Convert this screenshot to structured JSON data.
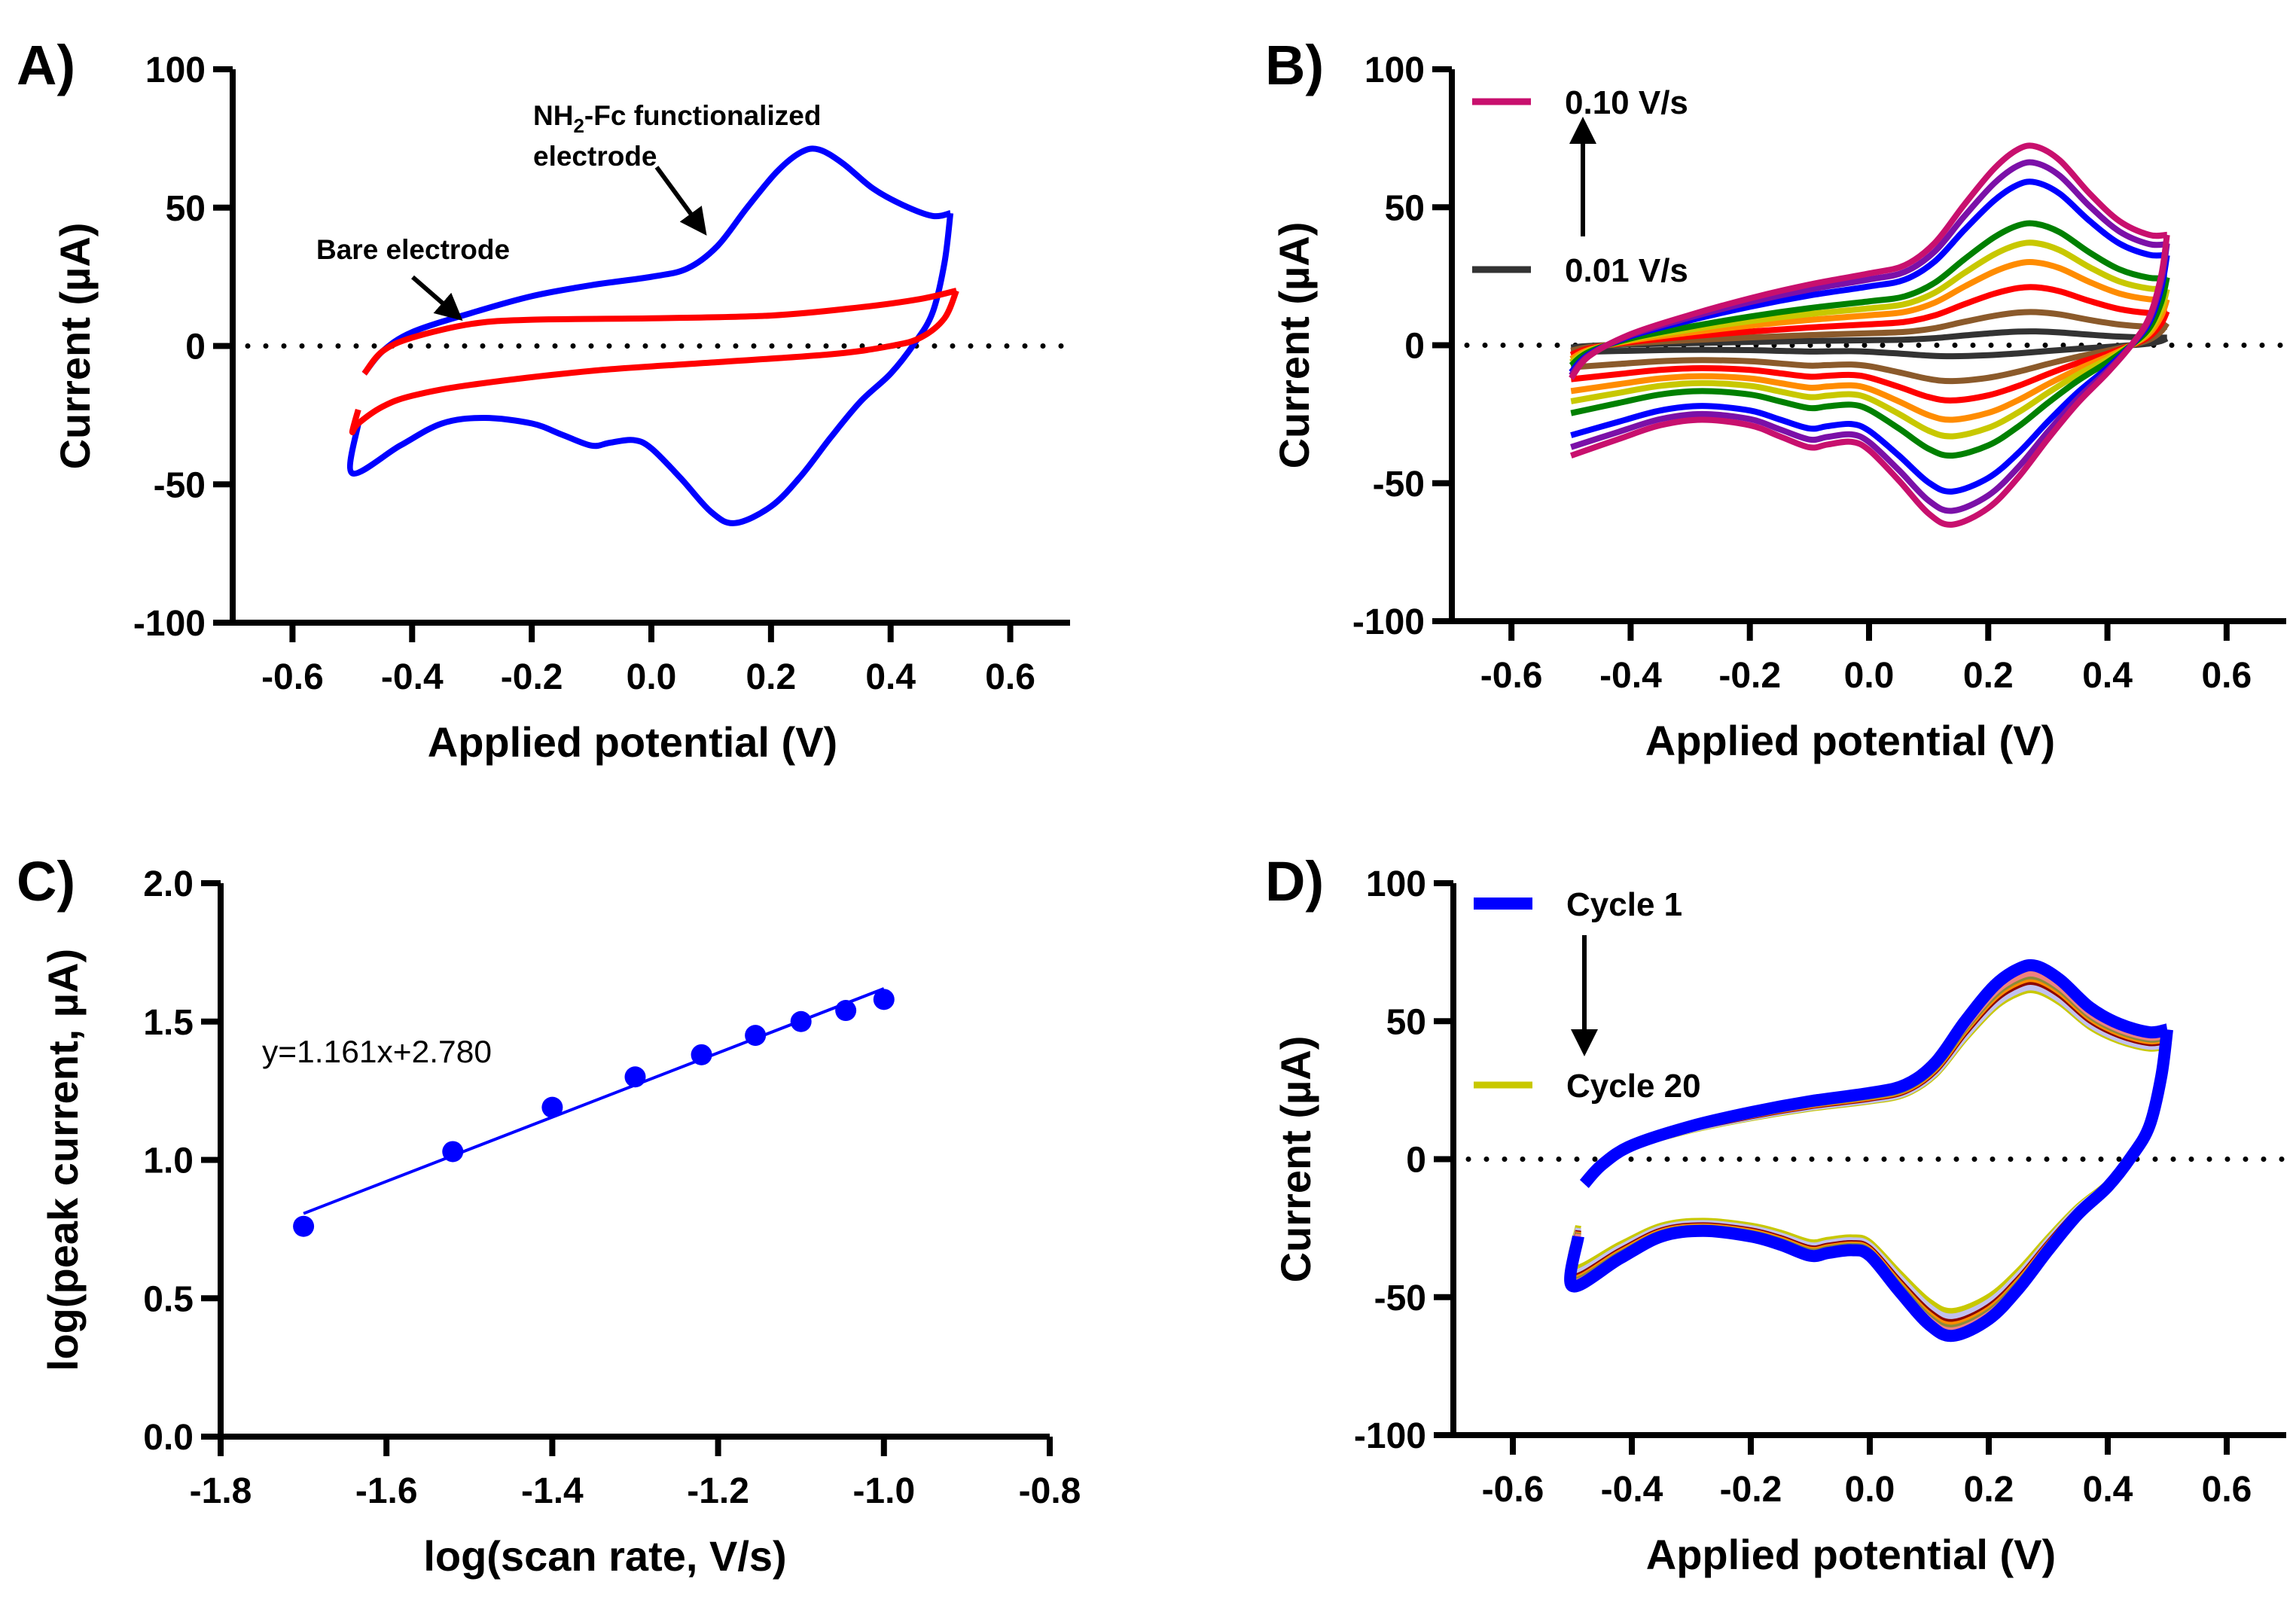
{
  "chart_data": [
    {
      "panel": "A)",
      "type": "line",
      "xlabel": "Applied potential (V)",
      "ylabel": "Current (µA)",
      "xlim": [
        -0.7,
        0.7
      ],
      "ylim": [
        -100,
        100
      ],
      "xticks": [
        "-0.6",
        "-0.4",
        "-0.2",
        "0.0",
        "0.2",
        "0.4",
        "0.6"
      ],
      "yticks": [
        "-100",
        "-50",
        "0",
        "50",
        "100"
      ],
      "zero_line": "dotted",
      "grid": false,
      "series": [
        {
          "color": "#0000FF",
          "points_forward": [
            [
              -0.48,
              -10
            ],
            [
              -0.45,
              -2
            ],
            [
              -0.4,
              5
            ],
            [
              -0.3,
              12
            ],
            [
              -0.2,
              18
            ],
            [
              -0.1,
              22
            ],
            [
              0.0,
              25
            ],
            [
              0.06,
              28
            ],
            [
              0.11,
              36
            ],
            [
              0.16,
              50
            ],
            [
              0.21,
              63
            ],
            [
              0.25,
              70
            ],
            [
              0.28,
              71
            ],
            [
              0.32,
              66
            ],
            [
              0.37,
              57
            ],
            [
              0.42,
              51
            ],
            [
              0.47,
              47
            ],
            [
              0.5,
              48
            ]
          ],
          "points_reverse": [
            [
              0.5,
              48
            ],
            [
              0.49,
              30
            ],
            [
              0.47,
              12
            ],
            [
              0.44,
              1
            ],
            [
              0.4,
              -10
            ],
            [
              0.35,
              -20
            ],
            [
              0.3,
              -33
            ],
            [
              0.25,
              -47
            ],
            [
              0.2,
              -58
            ],
            [
              0.14,
              -64
            ],
            [
              0.1,
              -60
            ],
            [
              0.05,
              -48
            ],
            [
              0.0,
              -37
            ],
            [
              -0.03,
              -34
            ],
            [
              -0.07,
              -35
            ],
            [
              -0.1,
              -36
            ],
            [
              -0.15,
              -32
            ],
            [
              -0.2,
              -28
            ],
            [
              -0.28,
              -26
            ],
            [
              -0.35,
              -28
            ],
            [
              -0.42,
              -36
            ],
            [
              -0.5,
              -46
            ],
            [
              -0.49,
              -28
            ]
          ]
        },
        {
          "color": "#FF0000",
          "points_forward": [
            [
              -0.48,
              -10
            ],
            [
              -0.45,
              -2
            ],
            [
              -0.4,
              3
            ],
            [
              -0.3,
              8
            ],
            [
              -0.2,
              9.5
            ],
            [
              0.0,
              10
            ],
            [
              0.2,
              11
            ],
            [
              0.35,
              14
            ],
            [
              0.45,
              17
            ],
            [
              0.51,
              20
            ]
          ],
          "points_reverse": [
            [
              0.51,
              20
            ],
            [
              0.49,
              10
            ],
            [
              0.45,
              3
            ],
            [
              0.4,
              0
            ],
            [
              0.3,
              -3
            ],
            [
              0.1,
              -6
            ],
            [
              -0.1,
              -9
            ],
            [
              -0.3,
              -14
            ],
            [
              -0.4,
              -18
            ],
            [
              -0.45,
              -22
            ],
            [
              -0.49,
              -28
            ],
            [
              -0.5,
              -31
            ],
            [
              -0.49,
              -23
            ]
          ]
        }
      ],
      "annotations": [
        {
          "line1_main": "NH",
          "line1_sub": "2",
          "line1_rest": "-Fc functionalized",
          "line2": "electrode",
          "points_to": "blue curve"
        },
        {
          "line1_main": "Bare electrode",
          "points_to": "red curve"
        }
      ]
    },
    {
      "panel": "B)",
      "type": "line",
      "xlabel": "Applied potential (V)",
      "ylabel": "Current (µA)",
      "xlim": [
        -0.7,
        0.7
      ],
      "ylim": [
        -100,
        100
      ],
      "xticks": [
        "-0.6",
        "-0.4",
        "-0.2",
        "0.0",
        "0.2",
        "0.4",
        "0.6"
      ],
      "yticks": [
        "-100",
        "-50",
        "0",
        "50",
        "100"
      ],
      "zero_line": "dotted",
      "grid": false,
      "legend": {
        "top": "0.10 V/s",
        "bottom": "0.01 V/s",
        "arrow": "up",
        "placement": "top-left"
      },
      "series": [
        {
          "name": "0.10 V/s",
          "color": "#C8106E",
          "anodic_peak": 72,
          "cathodic_peak": -65,
          "points_forward": [
            [
              -0.5,
              -12
            ],
            [
              -0.47,
              -4
            ],
            [
              -0.4,
              4
            ],
            [
              -0.3,
              11
            ],
            [
              -0.2,
              17
            ],
            [
              -0.1,
              22
            ],
            [
              0.0,
              26
            ],
            [
              0.06,
              29
            ],
            [
              0.11,
              37
            ],
            [
              0.16,
              51
            ],
            [
              0.21,
              64
            ],
            [
              0.25,
              71
            ],
            [
              0.28,
              72
            ],
            [
              0.32,
              67
            ],
            [
              0.37,
              55
            ],
            [
              0.42,
              45
            ],
            [
              0.47,
              40
            ],
            [
              0.5,
              40
            ]
          ],
          "points_reverse": [
            [
              0.5,
              40
            ],
            [
              0.49,
              25
            ],
            [
              0.47,
              10
            ],
            [
              0.44,
              0
            ],
            [
              0.4,
              -10
            ],
            [
              0.35,
              -21
            ],
            [
              0.3,
              -34
            ],
            [
              0.25,
              -48
            ],
            [
              0.2,
              -59
            ],
            [
              0.14,
              -65
            ],
            [
              0.1,
              -61
            ],
            [
              0.05,
              -49
            ],
            [
              0.0,
              -38
            ],
            [
              -0.03,
              -35
            ],
            [
              -0.07,
              -36
            ],
            [
              -0.1,
              -37
            ],
            [
              -0.15,
              -33
            ],
            [
              -0.2,
              -29
            ],
            [
              -0.28,
              -27
            ],
            [
              -0.35,
              -29
            ],
            [
              -0.42,
              -34
            ],
            [
              -0.5,
              -40
            ]
          ]
        },
        {
          "color": "#7B10A8",
          "anodic_peak": 66,
          "cathodic_peak": -60
        },
        {
          "color": "#0000FF",
          "anodic_peak": 59,
          "cathodic_peak": -53
        },
        {
          "color": "#008000",
          "anodic_peak": 44,
          "cathodic_peak": -40
        },
        {
          "color": "#C8C800",
          "anodic_peak": 37,
          "cathodic_peak": -33
        },
        {
          "color": "#FF8C00",
          "anodic_peak": 30,
          "cathodic_peak": -27
        },
        {
          "color": "#FF0000",
          "anodic_peak": 21,
          "cathodic_peak": -20
        },
        {
          "color": "#8B5A2B",
          "anodic_peak": 12,
          "cathodic_peak": -13
        },
        {
          "name": "0.01 V/s",
          "color": "#333333",
          "anodic_peak": 5,
          "cathodic_peak": -4
        }
      ]
    },
    {
      "panel": "C)",
      "type": "scatter",
      "xlabel": "log(scan rate, V/s)",
      "ylabel": "log(peak current, µA)",
      "xlim": [
        -1.8,
        -0.8
      ],
      "ylim": [
        0.0,
        2.0
      ],
      "xticks": [
        "-1.8",
        "-1.6",
        "-1.4",
        "-1.2",
        "-1.0",
        "-0.8"
      ],
      "yticks": [
        "0.0",
        "0.5",
        "1.0",
        "1.5",
        "2.0"
      ],
      "grid": false,
      "color": "#0000FF",
      "x": [
        -1.7,
        -1.52,
        -1.4,
        -1.3,
        -1.22,
        -1.155,
        -1.1,
        -1.046,
        -1.0
      ],
      "y": [
        0.76,
        1.03,
        1.19,
        1.3,
        1.38,
        1.45,
        1.5,
        1.54,
        1.58
      ],
      "fit": {
        "equation": "y=1.161x+2.780",
        "slope": 1.161,
        "intercept": 2.78,
        "x_range": [
          -1.7,
          -1.0
        ]
      }
    },
    {
      "panel": "D)",
      "type": "line",
      "xlabel": "Applied potential (V)",
      "ylabel": "Current (µA)",
      "xlim": [
        -0.7,
        0.7
      ],
      "ylim": [
        -100,
        100
      ],
      "xticks": [
        "-0.6",
        "-0.4",
        "-0.2",
        "0.0",
        "0.2",
        "0.4",
        "0.6"
      ],
      "yticks": [
        "-100",
        "-50",
        "0",
        "50",
        "100"
      ],
      "zero_line": "dotted",
      "grid": false,
      "legend": {
        "top": "Cycle 1",
        "bottom": "Cycle 20",
        "arrow": "down",
        "placement": "top-left"
      },
      "series": [
        {
          "name": "Cycle 1",
          "color": "#0000FF",
          "anodic_peak": 70,
          "cathodic_peak": -64,
          "points_forward": [
            [
              -0.48,
              -9
            ],
            [
              -0.45,
              -2
            ],
            [
              -0.4,
              5
            ],
            [
              -0.3,
              12
            ],
            [
              -0.2,
              17
            ],
            [
              -0.1,
              21
            ],
            [
              0.0,
              24
            ],
            [
              0.06,
              27
            ],
            [
              0.11,
              35
            ],
            [
              0.16,
              50
            ],
            [
              0.21,
              63
            ],
            [
              0.25,
              69
            ],
            [
              0.28,
              70
            ],
            [
              0.32,
              65
            ],
            [
              0.37,
              55
            ],
            [
              0.42,
              49
            ],
            [
              0.47,
              46
            ],
            [
              0.5,
              47
            ]
          ],
          "points_reverse": [
            [
              0.5,
              47
            ],
            [
              0.49,
              30
            ],
            [
              0.47,
              12
            ],
            [
              0.44,
              1
            ],
            [
              0.4,
              -10
            ],
            [
              0.35,
              -20
            ],
            [
              0.3,
              -33
            ],
            [
              0.25,
              -47
            ],
            [
              0.2,
              -58
            ],
            [
              0.14,
              -64
            ],
            [
              0.1,
              -60
            ],
            [
              0.05,
              -48
            ],
            [
              0.0,
              -35
            ],
            [
              -0.03,
              -33
            ],
            [
              -0.07,
              -34
            ],
            [
              -0.1,
              -35
            ],
            [
              -0.15,
              -31
            ],
            [
              -0.2,
              -28
            ],
            [
              -0.28,
              -26
            ],
            [
              -0.35,
              -28
            ],
            [
              -0.42,
              -36
            ],
            [
              -0.5,
              -46
            ],
            [
              -0.49,
              -28
            ]
          ]
        },
        {
          "color": "#F08080",
          "anodic_peak": 67,
          "cathodic_peak": -62
        },
        {
          "color": "#8B8B3A",
          "anodic_peak": 66,
          "cathodic_peak": -61
        },
        {
          "color": "#FF8C00",
          "anodic_peak": 65,
          "cathodic_peak": -60
        },
        {
          "color": "#8B0000",
          "anodic_peak": 64,
          "cathodic_peak": -59
        },
        {
          "color": "#C0C0F0",
          "anodic_peak": 62,
          "cathodic_peak": -57
        },
        {
          "name": "Cycle 20",
          "color": "#C8C800",
          "anodic_peak": 61,
          "cathodic_peak": -55
        }
      ]
    }
  ]
}
